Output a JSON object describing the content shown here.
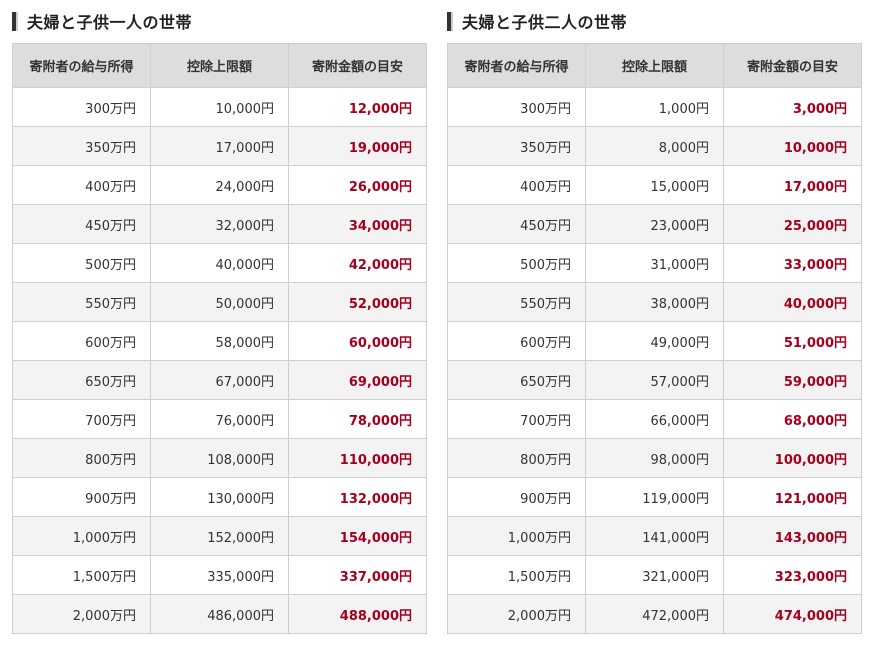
{
  "tables": [
    {
      "title": "夫婦と子供一人の世帯",
      "headers": [
        "寄附者の給与所得",
        "控除上限額",
        "寄附金額の目安"
      ],
      "rows": [
        [
          "300万円",
          "10,000円",
          "12,000円"
        ],
        [
          "350万円",
          "17,000円",
          "19,000円"
        ],
        [
          "400万円",
          "24,000円",
          "26,000円"
        ],
        [
          "450万円",
          "32,000円",
          "34,000円"
        ],
        [
          "500万円",
          "40,000円",
          "42,000円"
        ],
        [
          "550万円",
          "50,000円",
          "52,000円"
        ],
        [
          "600万円",
          "58,000円",
          "60,000円"
        ],
        [
          "650万円",
          "67,000円",
          "69,000円"
        ],
        [
          "700万円",
          "76,000円",
          "78,000円"
        ],
        [
          "800万円",
          "108,000円",
          "110,000円"
        ],
        [
          "900万円",
          "130,000円",
          "132,000円"
        ],
        [
          "1,000万円",
          "152,000円",
          "154,000円"
        ],
        [
          "1,500万円",
          "335,000円",
          "337,000円"
        ],
        [
          "2,000万円",
          "486,000円",
          "488,000円"
        ]
      ]
    },
    {
      "title": "夫婦と子供二人の世帯",
      "headers": [
        "寄附者の給与所得",
        "控除上限額",
        "寄附金額の目安"
      ],
      "rows": [
        [
          "300万円",
          "1,000円",
          "3,000円"
        ],
        [
          "350万円",
          "8,000円",
          "10,000円"
        ],
        [
          "400万円",
          "15,000円",
          "17,000円"
        ],
        [
          "450万円",
          "23,000円",
          "25,000円"
        ],
        [
          "500万円",
          "31,000円",
          "33,000円"
        ],
        [
          "550万円",
          "38,000円",
          "40,000円"
        ],
        [
          "600万円",
          "49,000円",
          "51,000円"
        ],
        [
          "650万円",
          "57,000円",
          "59,000円"
        ],
        [
          "700万円",
          "66,000円",
          "68,000円"
        ],
        [
          "800万円",
          "98,000円",
          "100,000円"
        ],
        [
          "900万円",
          "119,000円",
          "121,000円"
        ],
        [
          "1,000万円",
          "141,000円",
          "143,000円"
        ],
        [
          "1,500万円",
          "321,000円",
          "323,000円"
        ],
        [
          "2,000万円",
          "472,000円",
          "474,000円"
        ]
      ]
    }
  ],
  "colors": {
    "header_bg": "#dddddd",
    "row_alt_bg": "#f3f3f3",
    "guide_text": "#a5001e",
    "border": "#cfcfcf"
  }
}
